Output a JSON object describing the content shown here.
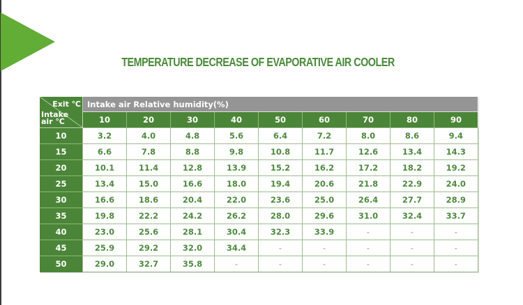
{
  "title": "TEMPERATURE DECREASE OF EVAPORATIVE AIR COOLER",
  "colors": {
    "accent_green": "#62ad35",
    "header_green": "#4b8537",
    "header_gray": "#959595",
    "value_green": "#4e8a3e"
  },
  "table": {
    "corner_top_label": "Exit ℃",
    "corner_bottom_label_line1": "Intake",
    "corner_bottom_label_line2": "air ℃",
    "group_header": "Intake air Relative humidity(%)",
    "humidity_columns": [
      "10",
      "20",
      "30",
      "40",
      "50",
      "60",
      "70",
      "80",
      "90"
    ],
    "rows": [
      {
        "intake": "10",
        "values": [
          "3.2",
          "4.0",
          "4.8",
          "5.6",
          "6.4",
          "7.2",
          "8.0",
          "8.6",
          "9.4"
        ]
      },
      {
        "intake": "15",
        "values": [
          "6.6",
          "7.8",
          "8.8",
          "9.8",
          "10.8",
          "11.7",
          "12.6",
          "13.4",
          "14.3"
        ]
      },
      {
        "intake": "20",
        "values": [
          "10.1",
          "11.4",
          "12.8",
          "13.9",
          "15.2",
          "16.2",
          "17.2",
          "18.2",
          "19.2"
        ]
      },
      {
        "intake": "25",
        "values": [
          "13.4",
          "15.0",
          "16.6",
          "18.0",
          "19.4",
          "20.6",
          "21.8",
          "22.9",
          "24.0"
        ]
      },
      {
        "intake": "30",
        "values": [
          "16.6",
          "18.6",
          "20.4",
          "22.0",
          "23.6",
          "25.0",
          "26.4",
          "27.7",
          "28.9"
        ]
      },
      {
        "intake": "35",
        "values": [
          "19.8",
          "22.2",
          "24.2",
          "26.2",
          "28.0",
          "29.6",
          "31.0",
          "32.4",
          "33.7"
        ]
      },
      {
        "intake": "40",
        "values": [
          "23.0",
          "25.6",
          "28.1",
          "30.4",
          "32.3",
          "33.9",
          "-",
          "-",
          "-"
        ]
      },
      {
        "intake": "45",
        "values": [
          "25.9",
          "29.2",
          "32.0",
          "34.4",
          "-",
          "-",
          "-",
          "-",
          "-"
        ]
      },
      {
        "intake": "50",
        "values": [
          "29.0",
          "32.7",
          "35.8",
          "-",
          "-",
          "-",
          "-",
          "-",
          "-"
        ]
      }
    ]
  }
}
